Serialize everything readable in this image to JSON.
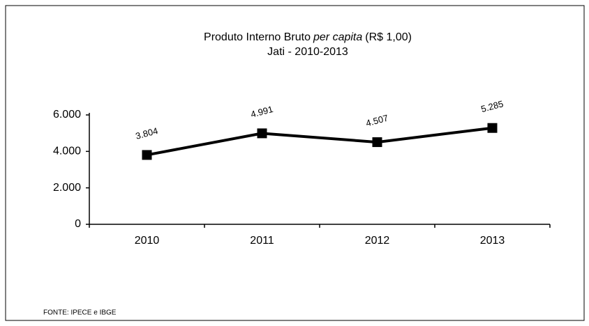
{
  "chart_data": {
    "type": "line",
    "title": [
      "Produto Interno Bruto",
      "per capita",
      "(R$ 1,00)"
    ],
    "title_italic": [
      false,
      true,
      false
    ],
    "subtitle": "Jati - 2010-2013",
    "source": "FONTE: IPECE e IBGE",
    "categories": [
      "2010",
      "2011",
      "2012",
      "2013"
    ],
    "values": [
      3804,
      4991,
      4507,
      5285
    ],
    "value_labels": [
      "3.804",
      "4.991",
      "4.507",
      "5.285"
    ],
    "color": "#000000",
    "ylim": [
      0,
      6000
    ],
    "yticks": [
      0,
      {
        "value": 2000,
        "label": "2.000"
      },
      {
        "value": 4000,
        "label": "4.000"
      },
      {
        "value": 6000,
        "label": "6.000"
      }
    ],
    "grid": false
  }
}
